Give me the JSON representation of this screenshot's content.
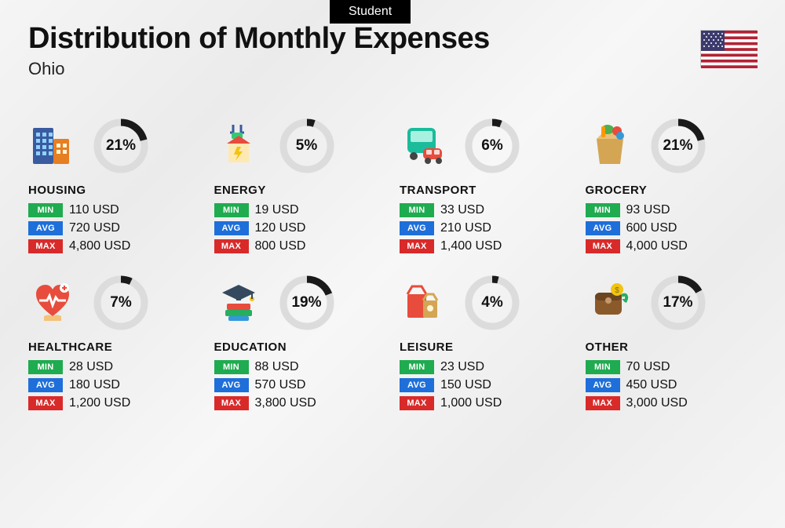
{
  "badge": "Student",
  "title": "Distribution of Monthly Expenses",
  "subtitle": "Ohio",
  "flag": {
    "stripes": [
      "#b22234",
      "#ffffff"
    ],
    "canton": "#3c3b6e"
  },
  "labels": {
    "min": "MIN",
    "avg": "AVG",
    "max": "MAX",
    "currency": "USD"
  },
  "colors": {
    "min_tag": "#1fab4f",
    "avg_tag": "#1e6fd9",
    "max_tag": "#d92a2a",
    "donut_fg": "#1a1a1a",
    "donut_bg": "#dcdcdc"
  },
  "donut": {
    "radius": 30,
    "stroke": 9
  },
  "categories": [
    {
      "key": "housing",
      "name": "HOUSING",
      "pct": 21,
      "min": "110",
      "avg": "720",
      "max": "4,800",
      "icon": "housing"
    },
    {
      "key": "energy",
      "name": "ENERGY",
      "pct": 5,
      "min": "19",
      "avg": "120",
      "max": "800",
      "icon": "energy"
    },
    {
      "key": "transport",
      "name": "TRANSPORT",
      "pct": 6,
      "min": "33",
      "avg": "210",
      "max": "1,400",
      "icon": "transport"
    },
    {
      "key": "grocery",
      "name": "GROCERY",
      "pct": 21,
      "min": "93",
      "avg": "600",
      "max": "4,000",
      "icon": "grocery"
    },
    {
      "key": "healthcare",
      "name": "HEALTHCARE",
      "pct": 7,
      "min": "28",
      "avg": "180",
      "max": "1,200",
      "icon": "healthcare"
    },
    {
      "key": "education",
      "name": "EDUCATION",
      "pct": 19,
      "min": "88",
      "avg": "570",
      "max": "3,800",
      "icon": "education"
    },
    {
      "key": "leisure",
      "name": "LEISURE",
      "pct": 4,
      "min": "23",
      "avg": "150",
      "max": "1,000",
      "icon": "leisure"
    },
    {
      "key": "other",
      "name": "OTHER",
      "pct": 17,
      "min": "70",
      "avg": "450",
      "max": "3,000",
      "icon": "other"
    }
  ]
}
